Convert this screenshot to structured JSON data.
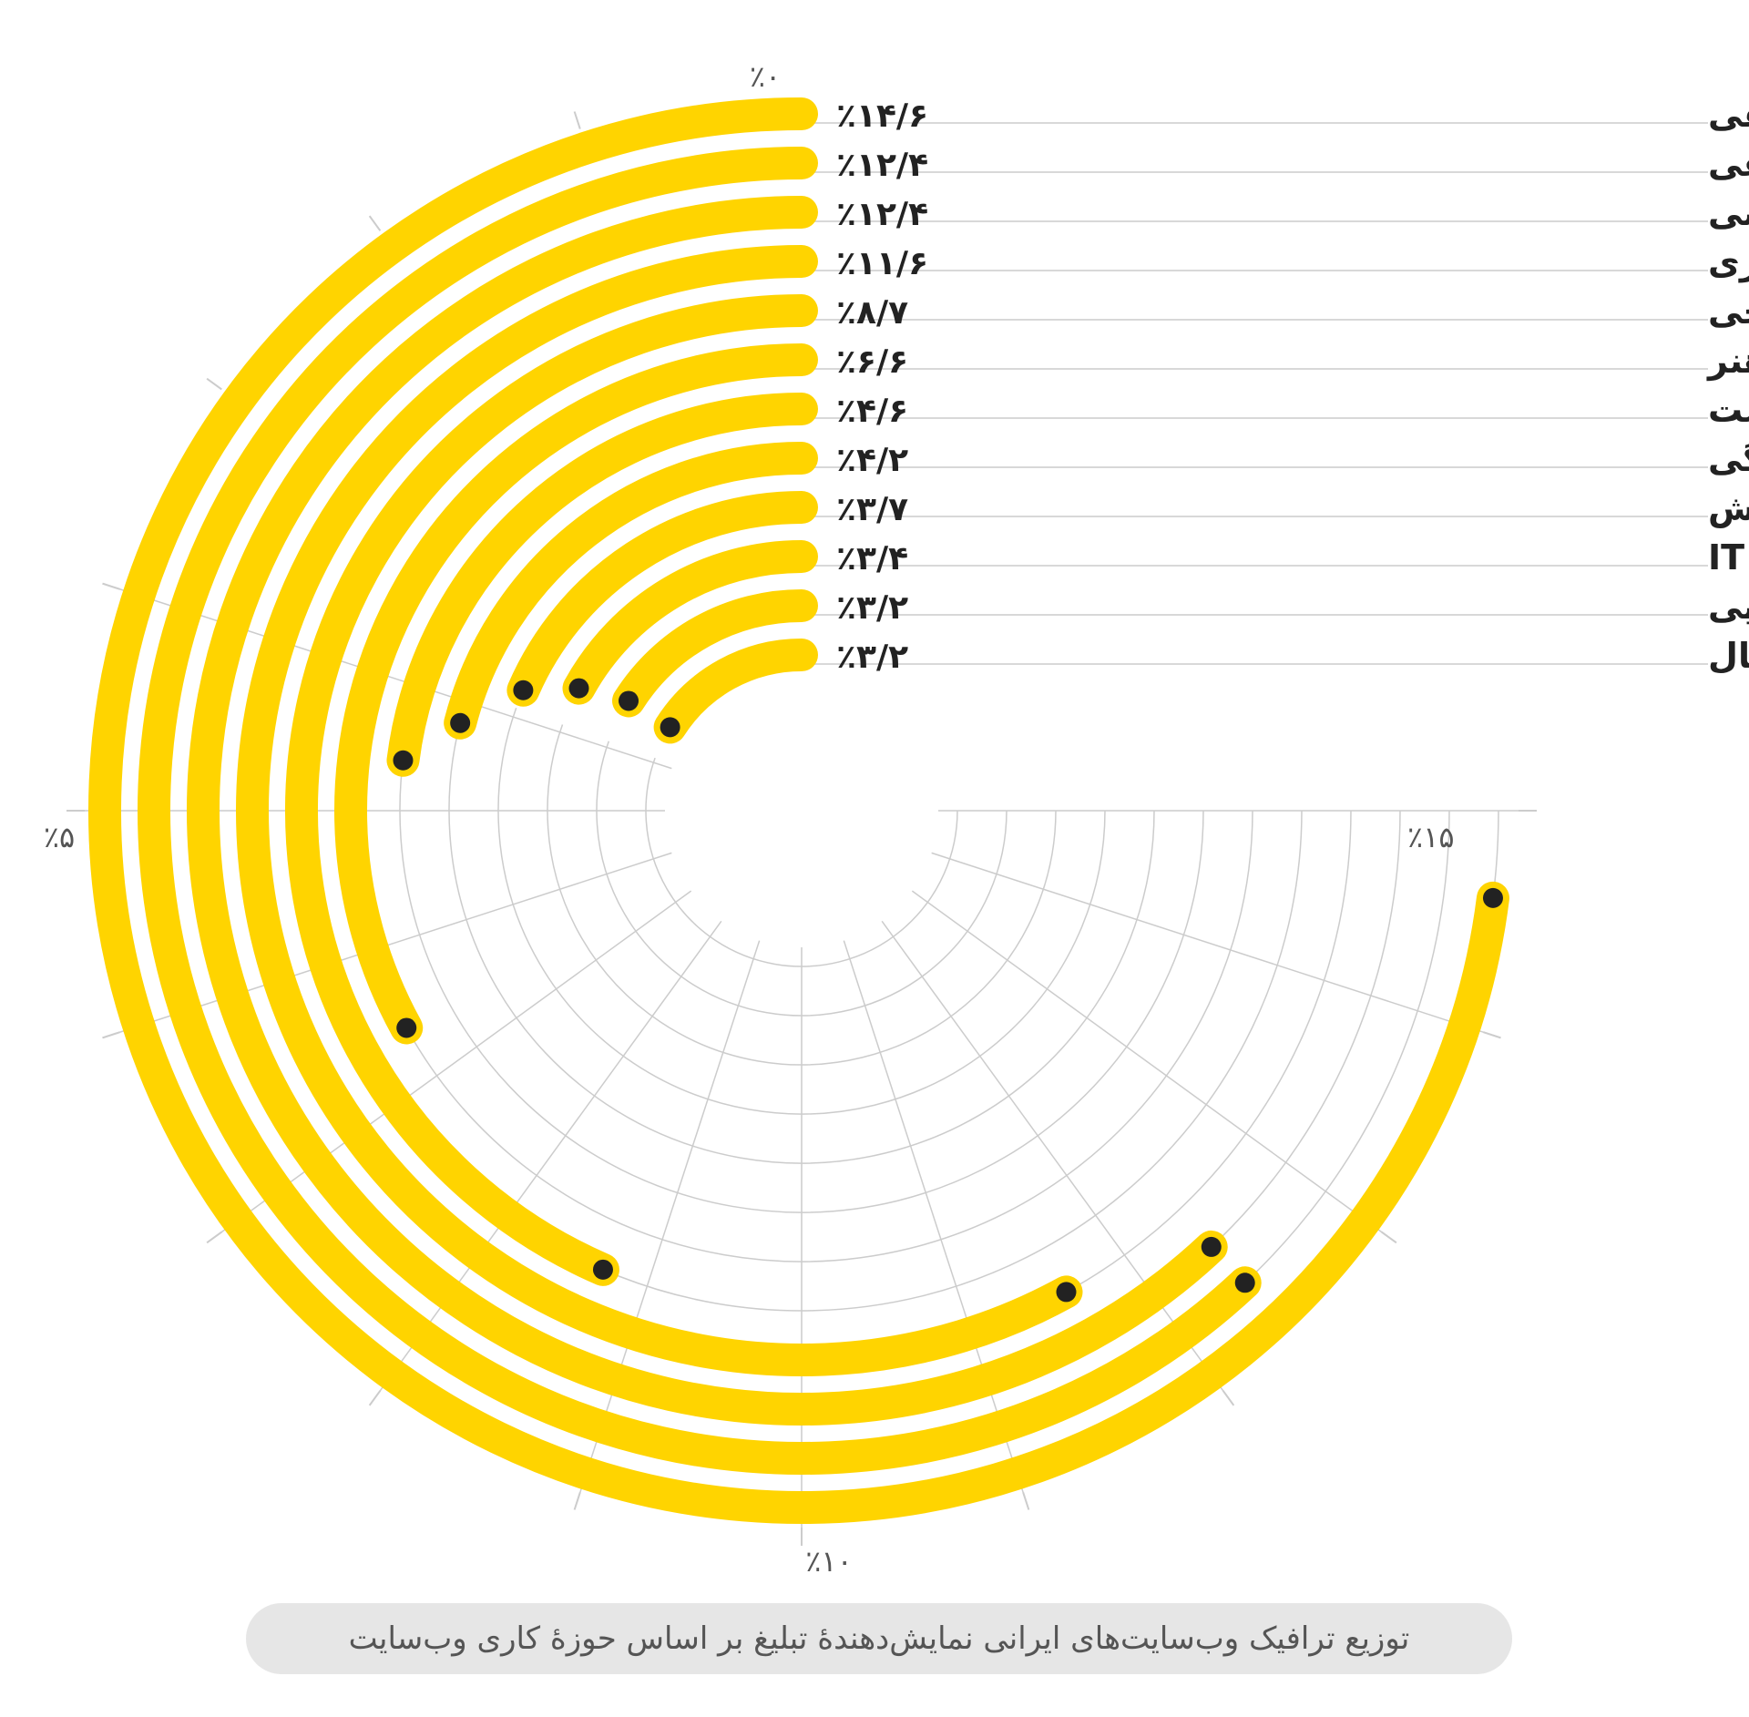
{
  "chart_data": {
    "type": "radial-bar",
    "title": "توزیع ترافیک وب‌سایت‌های ایرانی نمایش‌دهندهٔ تبلیغ بر اساس حوزهٔ کاری وب‌سایت",
    "axis_max": 20,
    "axis_ticks": [
      {
        "value": 0,
        "label": "٪۰"
      },
      {
        "value": 5,
        "label": "٪۵"
      },
      {
        "value": 10,
        "label": "٪۱۰"
      },
      {
        "value": 15,
        "label": "٪۱۵"
      }
    ],
    "colors": {
      "bar": "#FFD400",
      "dot": "#222222",
      "grid": "#cccccc",
      "guide": "#cccccc"
    },
    "categories": [
      {
        "label": "آهنگ و موسیقی",
        "value": 14.6,
        "value_label": "٪۱۴/۶"
      },
      {
        "label": "سیاسی و اجتماعی",
        "value": 12.4,
        "value_label": "٪۱۲/۴"
      },
      {
        "label": "ورزشی",
        "value": 12.4,
        "value_label": "٪۱۲/۴"
      },
      {
        "label": "اقتصادی، مالی و سرمایه‌گذاری",
        "value": 11.6,
        "value_label": "٪۱۱/۶"
      },
      {
        "label": "سرگرمی و تفریحی",
        "value": 8.7,
        "value_label": "٪۸/۷"
      },
      {
        "label": "فرهنگ و هنر",
        "value": 6.6,
        "value_label": "٪۶/۶"
      },
      {
        "label": "پزشکی، سلامت",
        "value": 4.6,
        "value_label": "٪۴/۶"
      },
      {
        "label": "سبک زندگی",
        "value": 4.2,
        "value_label": "٪۴/۲"
      },
      {
        "label": "آموزش",
        "value": 3.7,
        "value_label": "٪۳/۷"
      },
      {
        "label": "تکنولوژی، فناوری و IT",
        "value": 3.4,
        "value_label": "٪۳/۴"
      },
      {
        "label": "پوشاک، مد و زیبایی",
        "value": 3.2,
        "value_label": "٪۳/۲"
      },
      {
        "label": "سینما، فیلم و سریال",
        "value": 3.2,
        "value_label": "٪۳/۲"
      }
    ]
  }
}
